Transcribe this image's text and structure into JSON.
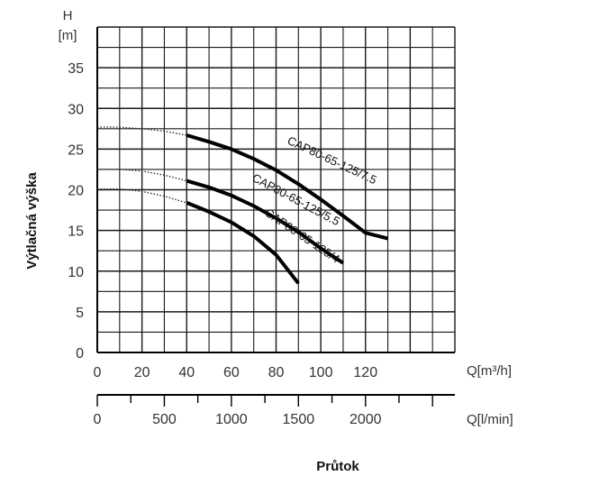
{
  "chart_data": {
    "type": "line",
    "title": "",
    "xlabel": "Průtok",
    "ylabel": "Výtlačná výška",
    "y_unit_top": "H",
    "y_unit_bottom": "[m]",
    "x_unit": "Q[m³/h]",
    "x2_unit": "Q[l/min]",
    "xlim": [
      0,
      160
    ],
    "ylim": [
      0,
      40
    ],
    "x_ticks": [
      "0",
      "20",
      "40",
      "60",
      "80",
      "100",
      "120"
    ],
    "y_ticks": [
      "0",
      "5",
      "10",
      "15",
      "20",
      "25",
      "30",
      "35"
    ],
    "x2_ticks": [
      "0",
      "500",
      "1000",
      "1500",
      "2000"
    ],
    "grid": true,
    "series": [
      {
        "name": "CAP80-65-125/7.5",
        "dashed": {
          "x": [
            0,
            10,
            20,
            30,
            40
          ],
          "y": [
            27.7,
            27.7,
            27.5,
            27.2,
            26.7
          ]
        },
        "solid": {
          "x": [
            40,
            50,
            60,
            70,
            80,
            90,
            100,
            110,
            120,
            130
          ],
          "y": [
            26.7,
            25.9,
            25.0,
            23.8,
            22.4,
            20.7,
            18.8,
            16.8,
            14.7,
            14.0
          ]
        }
      },
      {
        "name": "CAP80-65-125/5.5",
        "dashed": {
          "x": [
            0,
            10,
            20,
            30,
            40
          ],
          "y": [
            22.5,
            22.5,
            22.3,
            21.8,
            21.1
          ]
        },
        "solid": {
          "x": [
            40,
            50,
            60,
            70,
            80,
            90,
            100,
            110
          ],
          "y": [
            21.1,
            20.3,
            19.3,
            18.0,
            16.5,
            14.8,
            12.8,
            11.0
          ]
        }
      },
      {
        "name": "CAP80-65-125/4",
        "dashed": {
          "x": [
            0,
            10,
            20,
            30,
            40
          ],
          "y": [
            20.1,
            20.1,
            19.8,
            19.2,
            18.4
          ]
        },
        "solid": {
          "x": [
            40,
            50,
            60,
            70,
            80,
            90
          ],
          "y": [
            18.4,
            17.3,
            16.0,
            14.3,
            12.0,
            8.5
          ]
        }
      }
    ]
  }
}
